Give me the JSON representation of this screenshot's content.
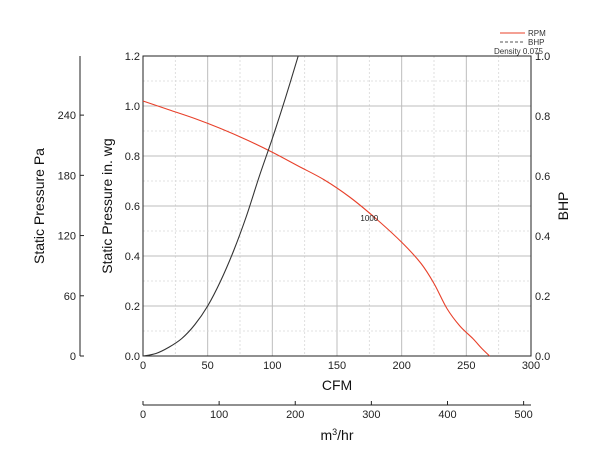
{
  "chart_data": {
    "type": "line",
    "legend": {
      "placement": "top-right",
      "entries": [
        {
          "label": "RPM",
          "color": "#e8402a",
          "style": "solid"
        },
        {
          "label": "BHP",
          "color": "#555555",
          "style": "dashed"
        }
      ],
      "density_label": "Density 0.075"
    },
    "xaxis": {
      "label": "CFM",
      "range": [
        0,
        300
      ],
      "ticks": [
        0,
        50,
        100,
        150,
        200,
        250,
        300
      ],
      "tick_labels": [
        "0",
        "50",
        "100",
        "150",
        "200",
        "250",
        "300"
      ]
    },
    "x2axis": {
      "label_base": "m",
      "label_sup": "3",
      "label_tail": "/hr",
      "range": [
        0,
        509.7
      ],
      "ticks": [
        0,
        100,
        200,
        300,
        400,
        500
      ],
      "tick_labels": [
        "0",
        "100",
        "200",
        "300",
        "400",
        "500"
      ]
    },
    "yaxis_left": {
      "label": "Static Pressure in. wg",
      "range": [
        0,
        1.2
      ],
      "ticks": [
        0,
        0.2,
        0.4,
        0.6,
        0.8,
        1.0,
        1.2
      ],
      "tick_labels": [
        "0.0",
        "0.2",
        "0.4",
        "0.6",
        "0.8",
        "1.0",
        "1.2"
      ]
    },
    "yaxis_pa": {
      "label": "Static Pressure Pa",
      "range": [
        0,
        298.9
      ],
      "ticks": [
        0,
        60,
        120,
        180,
        240
      ],
      "tick_labels": [
        "0",
        "60",
        "120",
        "180",
        "240"
      ]
    },
    "yaxis_right": {
      "label": "BHP",
      "range": [
        0,
        1.0
      ],
      "ticks": [
        0,
        0.2,
        0.4,
        0.6,
        0.8,
        1.0
      ],
      "tick_labels": [
        "0.0",
        "0.2",
        "0.4",
        "0.6",
        "0.8",
        "1.0"
      ]
    },
    "grid": true,
    "series": [
      {
        "name": "RPM",
        "color": "#e8402a",
        "axis": "left",
        "annotation": {
          "text": "1000",
          "x": 175,
          "y": 0.54
        },
        "x": [
          0,
          20,
          40,
          60,
          80,
          100,
          120,
          140,
          160,
          180,
          200,
          215,
          225,
          235,
          245,
          255,
          262,
          268
        ],
        "y": [
          1.02,
          0.985,
          0.95,
          0.91,
          0.865,
          0.815,
          0.76,
          0.705,
          0.635,
          0.55,
          0.455,
          0.37,
          0.29,
          0.19,
          0.12,
          0.07,
          0.03,
          0.0
        ]
      },
      {
        "name": "BHP",
        "color": "#333333",
        "axis": "left",
        "x": [
          0,
          10,
          20,
          30,
          40,
          50,
          60,
          70,
          80,
          90,
          100,
          110,
          120
        ],
        "y": [
          0.0,
          0.01,
          0.035,
          0.07,
          0.125,
          0.2,
          0.3,
          0.42,
          0.56,
          0.72,
          0.87,
          1.03,
          1.2
        ]
      }
    ]
  }
}
